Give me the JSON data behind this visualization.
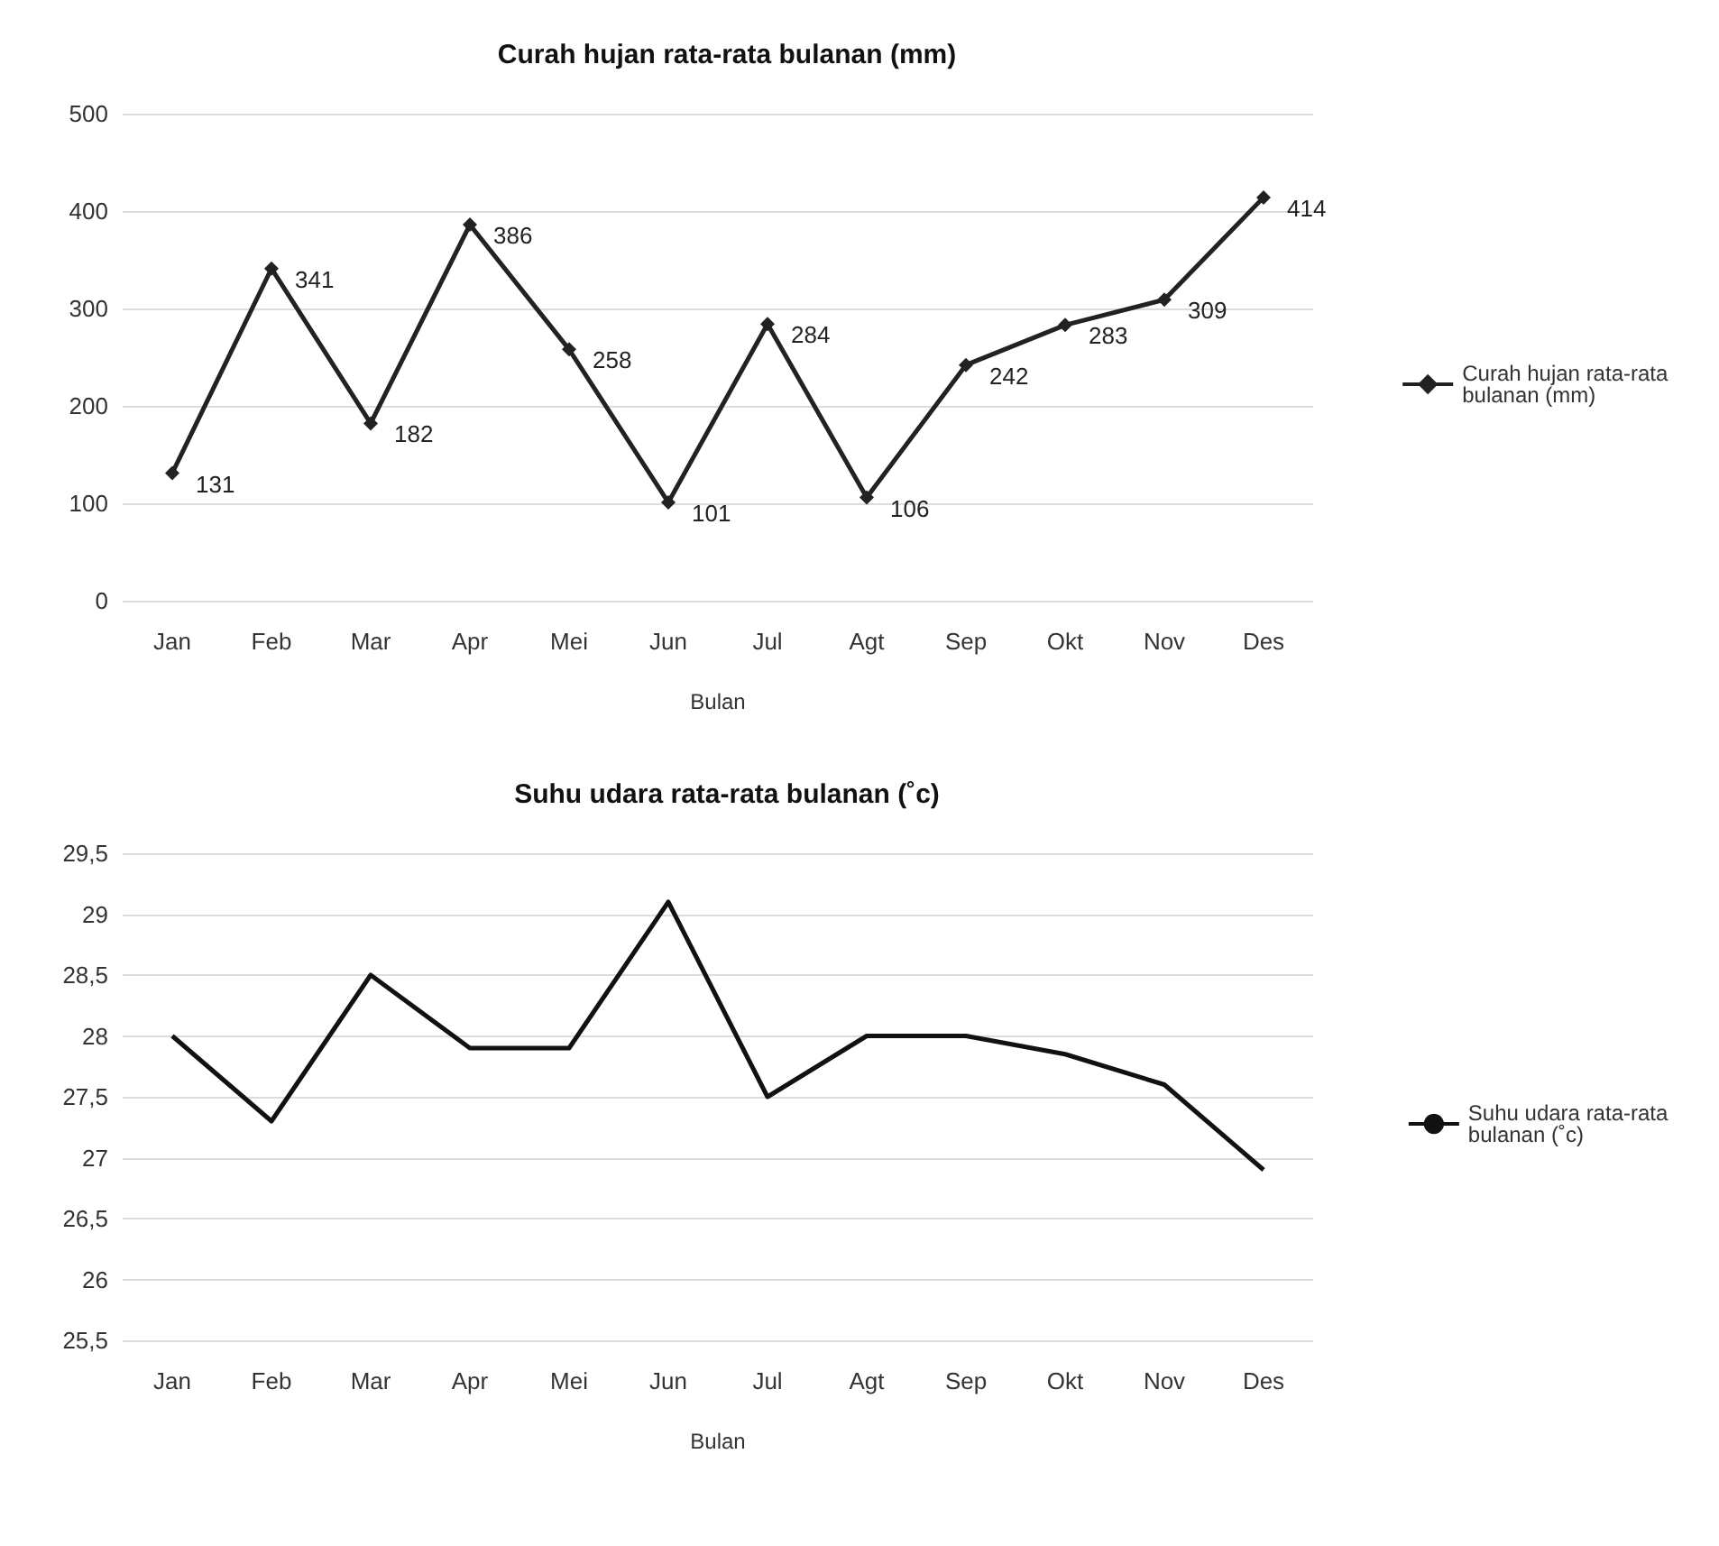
{
  "chart_data": [
    {
      "type": "line",
      "title": "Curah hujan rata-rata bulanan (mm)",
      "xlabel": "Bulan",
      "categories": [
        "Jan",
        "Feb",
        "Mar",
        "Apr",
        "Mei",
        "Jun",
        "Jul",
        "Agt",
        "Sep",
        "Okt",
        "Nov",
        "Des"
      ],
      "series": [
        {
          "name": "Curah hujan rata-rata bulanan (mm)",
          "color": "#222222",
          "values": [
            131,
            341,
            182,
            386,
            258,
            101,
            284,
            106,
            242,
            283,
            309,
            414
          ]
        }
      ],
      "ylim": [
        0,
        500
      ],
      "yticks": [
        0,
        100,
        200,
        300,
        400,
        500
      ],
      "grid": "y",
      "legend": "right",
      "marker": "diamond",
      "data_labels": true
    },
    {
      "type": "line",
      "title": "Suhu udara rata-rata bulanan (˚c)",
      "xlabel": "Bulan",
      "categories": [
        "Jan",
        "Feb",
        "Mar",
        "Apr",
        "Mei",
        "Jun",
        "Jul",
        "Agt",
        "Sep",
        "Okt",
        "Nov",
        "Des"
      ],
      "series": [
        {
          "name": "Suhu udara rata-rata bulanan (˚c)",
          "color": "#111111",
          "values": [
            28.0,
            27.3,
            28.5,
            27.9,
            27.9,
            29.1,
            27.5,
            28.0,
            28.0,
            27.85,
            27.6,
            26.9
          ]
        }
      ],
      "ylim": [
        25.5,
        29.5
      ],
      "yticks": [
        {
          "value": 25.5,
          "label": "25,5"
        },
        {
          "value": 26,
          "label": "26"
        },
        {
          "value": 26.5,
          "label": "26,5"
        },
        {
          "value": 27,
          "label": "27"
        },
        {
          "value": 27.5,
          "label": "27,5"
        },
        {
          "value": 28,
          "label": "28"
        },
        {
          "value": 28.5,
          "label": "28,5"
        },
        {
          "value": 29,
          "label": "29"
        },
        {
          "value": 29.5,
          "label": "29,5"
        }
      ],
      "grid": "y",
      "legend": "right",
      "marker": "none"
    }
  ]
}
